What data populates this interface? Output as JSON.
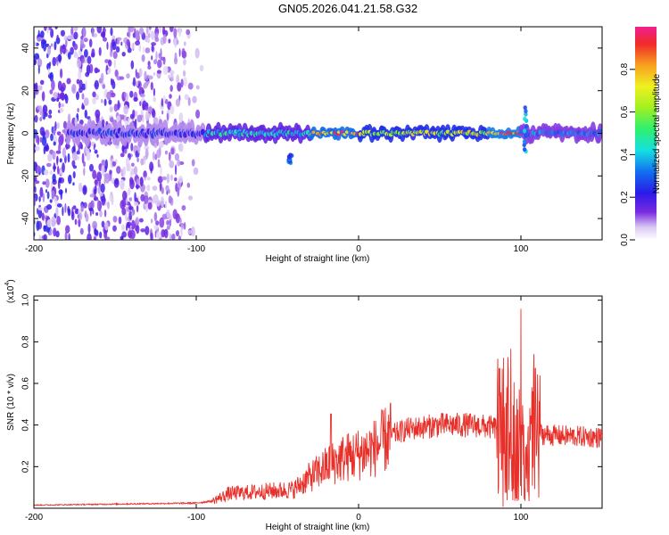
{
  "title": "GN05.2026.041.21.58.G32",
  "colorbar": {
    "label": "Normalized spectral amplitude",
    "ticks": [
      "0.0",
      "0.2",
      "0.4",
      "0.6",
      "0.8"
    ]
  },
  "chart_data": [
    {
      "type": "heatmap",
      "name": "spectrogram",
      "xlabel": "Height of straight line (km)",
      "ylabel": "Frequency (Hz)",
      "xlim": [
        -200,
        150
      ],
      "ylim": [
        -50,
        50
      ],
      "xticks": [
        -200,
        -100,
        0,
        100
      ],
      "yticks": [
        -40,
        -20,
        0,
        20,
        40
      ],
      "xtick_labels": [
        "-200",
        "-100",
        "0",
        "100"
      ],
      "ytick_labels": [
        "-40",
        "-20",
        "0",
        "20",
        "40"
      ],
      "value_range": [
        0,
        1
      ],
      "noise_region_km": [
        -200,
        -95
      ],
      "ridge": {
        "frequency_hz": 0,
        "segments": [
          {
            "from_km": -180,
            "to_km": -95,
            "amplitude": 0.25,
            "halfwidth_hz": 4
          },
          {
            "from_km": -95,
            "to_km": -30,
            "amplitude": 0.45,
            "halfwidth_hz": 3
          },
          {
            "from_km": -30,
            "to_km": 0,
            "amplitude": 0.9,
            "halfwidth_hz": 2
          },
          {
            "from_km": 0,
            "to_km": 80,
            "amplitude": 0.7,
            "halfwidth_hz": 2.5
          },
          {
            "from_km": 80,
            "to_km": 100,
            "amplitude": 0.95,
            "halfwidth_hz": 2
          },
          {
            "from_km": 100,
            "to_km": 150,
            "amplitude": 0.35,
            "halfwidth_hz": 3
          }
        ]
      },
      "features": [
        {
          "at_km": 103,
          "frequency_range_hz": [
            -10,
            14
          ],
          "note": "vertical burst"
        },
        {
          "at_km": -42,
          "frequency_range_hz": [
            -14,
            -10
          ],
          "note": "branch"
        }
      ]
    },
    {
      "type": "line",
      "name": "snr",
      "xlabel": "Height of straight line (km)",
      "ylabel": "SNR (10 * v/v)",
      "y_multiplier": "(x10",
      "y_multiplier_exp": "4",
      "xlim": [
        -200,
        150
      ],
      "ylim": [
        0,
        1.02
      ],
      "xticks": [
        -200,
        -100,
        0,
        100
      ],
      "yticks": [
        0.2,
        0.4,
        0.6,
        0.8,
        1.0
      ],
      "xtick_labels": [
        "-200",
        "-100",
        "0",
        "100"
      ],
      "ytick_labels": [
        "0.2",
        "0.4",
        "0.6",
        "0.8",
        "1.0"
      ],
      "color": "#e8302a",
      "envelope": {
        "x": [
          -200,
          -150,
          -100,
          -90,
          -80,
          -60,
          -40,
          -30,
          -20,
          -10,
          0,
          10,
          20,
          30,
          50,
          70,
          90,
          95,
          100,
          103,
          105,
          108,
          110,
          120,
          150
        ],
        "y": [
          0.015,
          0.02,
          0.025,
          0.035,
          0.07,
          0.08,
          0.09,
          0.15,
          0.2,
          0.24,
          0.26,
          0.29,
          0.35,
          0.38,
          0.4,
          0.4,
          0.38,
          0.34,
          0.3,
          0.22,
          0.25,
          0.36,
          0.36,
          0.35,
          0.34
        ]
      },
      "peaks": [
        {
          "x": -17,
          "y": 0.47
        },
        {
          "x": 92,
          "y": 0.73
        },
        {
          "x": 100,
          "y": 1.0
        },
        {
          "x": 107,
          "y": 0.6
        }
      ]
    }
  ]
}
